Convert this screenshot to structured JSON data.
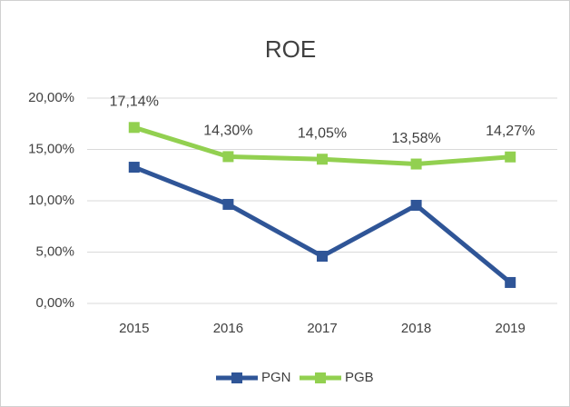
{
  "chart_data": {
    "type": "line",
    "title": "ROE",
    "categories": [
      "2015",
      "2016",
      "2017",
      "2018",
      "2019"
    ],
    "series": [
      {
        "name": "PGN",
        "color": "#2f5597",
        "values": [
          13.27,
          9.65,
          4.6,
          9.56,
          2.04
        ]
      },
      {
        "name": "PGB",
        "color": "#92d050",
        "values": [
          17.14,
          14.3,
          14.05,
          13.58,
          14.27
        ],
        "value_labels": [
          "17,14%",
          "14,30%",
          "14,05%",
          "13,58%",
          "14,27%"
        ]
      }
    ],
    "ylim": [
      0,
      20
    ],
    "yticks": [
      {
        "value": 0,
        "label": "0,00%"
      },
      {
        "value": 5,
        "label": "5,00%"
      },
      {
        "value": 10,
        "label": "10,00%"
      },
      {
        "value": 15,
        "label": "15,00%"
      },
      {
        "value": 20,
        "label": "20,00%"
      }
    ],
    "grid": true,
    "legend": "bottom"
  }
}
